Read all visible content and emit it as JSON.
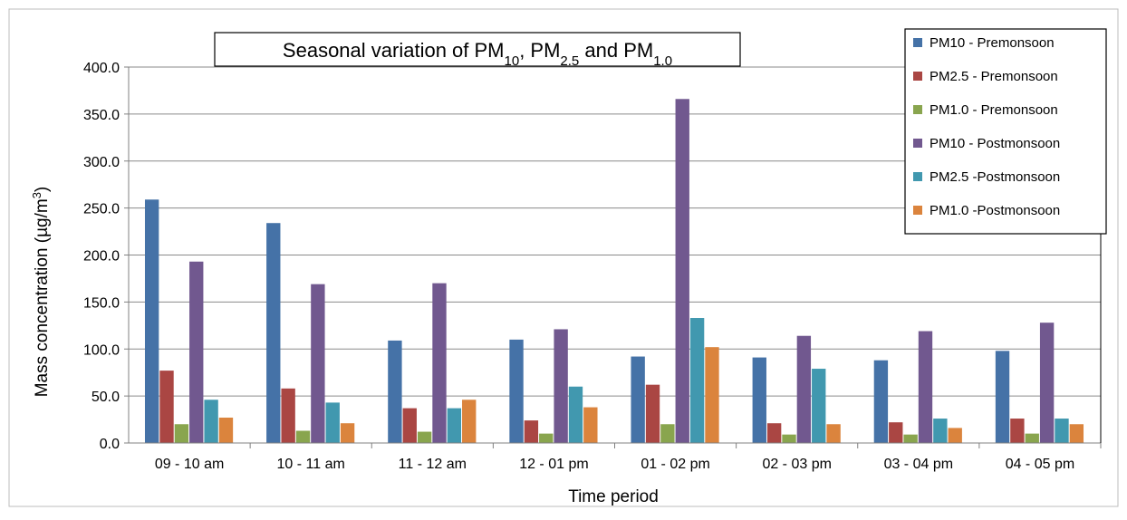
{
  "chart_data": {
    "type": "bar",
    "title": {
      "parts": [
        {
          "text": "Seasonal variation of PM",
          "sub": "10"
        },
        {
          "text": ", PM",
          "sub": "2.5"
        },
        {
          "text": " and PM",
          "sub": "1.0"
        }
      ]
    },
    "xlabel": "Time period",
    "ylabel": {
      "text": "Mass concentration (µg/m",
      "sup": "3",
      "tail": ")"
    },
    "ylim": [
      0,
      400
    ],
    "ytick_labels": [
      "0.0",
      "50.0",
      "100.0",
      "150.0",
      "200.0",
      "250.0",
      "300.0",
      "350.0",
      "400.0"
    ],
    "yticks": [
      0,
      50,
      100,
      150,
      200,
      250,
      300,
      350,
      400
    ],
    "grid": "horizontal",
    "legend_position": "right",
    "categories": [
      "09 - 10 am",
      "10 - 11 am",
      "11 - 12 am",
      "12 - 01 pm",
      "01 - 02 pm",
      "02 - 03 pm",
      "03 - 04 pm",
      "04 - 05 pm"
    ],
    "series": [
      {
        "name": "PM10 - Premonsoon",
        "color": "#4572a7",
        "values": [
          259,
          234,
          109,
          110,
          92,
          91,
          88,
          98
        ]
      },
      {
        "name": "PM2.5 - Premonsoon",
        "color": "#aa4643",
        "values": [
          77,
          58,
          37,
          24,
          62,
          21,
          22,
          26
        ]
      },
      {
        "name": "PM1.0 - Premonsoon",
        "color": "#89a54e",
        "values": [
          20,
          13,
          12,
          10,
          20,
          9,
          9,
          10
        ]
      },
      {
        "name": "PM10 - Postmonsoon",
        "color": "#71588f",
        "values": [
          193,
          169,
          170,
          121,
          366,
          114,
          119,
          128
        ]
      },
      {
        "name": "PM2.5 -Postmonsoon",
        "color": "#4198af",
        "values": [
          46,
          43,
          37,
          60,
          133,
          79,
          26,
          26
        ]
      },
      {
        "name": "PM1.0 -Postmonsoon",
        "color": "#db843d",
        "values": [
          27,
          21,
          46,
          38,
          102,
          20,
          16,
          20
        ]
      }
    ]
  }
}
